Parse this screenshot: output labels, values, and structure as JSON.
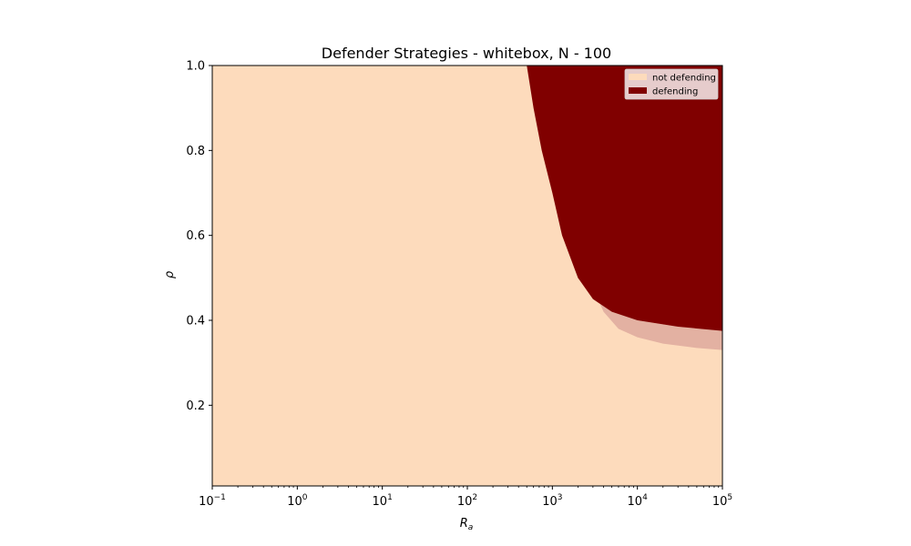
{
  "chart_data": {
    "type": "heatmap",
    "title": "Defender Strategies - whitebox, N - 100",
    "xlabel": {
      "base": "R",
      "sub": "a"
    },
    "ylabel": "ρ",
    "x_scale": "log",
    "xlim": [
      0.1,
      100000
    ],
    "ylim": [
      0.01,
      1.0
    ],
    "x_ticks": [
      {
        "base": "10",
        "exp": "−1",
        "value": 0.1
      },
      {
        "base": "10",
        "exp": "0",
        "value": 1
      },
      {
        "base": "10",
        "exp": "1",
        "value": 10
      },
      {
        "base": "10",
        "exp": "2",
        "value": 100
      },
      {
        "base": "10",
        "exp": "3",
        "value": 1000
      },
      {
        "base": "10",
        "exp": "4",
        "value": 10000
      },
      {
        "base": "10",
        "exp": "5",
        "value": 100000
      }
    ],
    "y_ticks": [
      {
        "label": "0.2",
        "value": 0.2
      },
      {
        "label": "0.4",
        "value": 0.4
      },
      {
        "label": "0.6",
        "value": 0.6
      },
      {
        "label": "0.8",
        "value": 0.8
      },
      {
        "label": "1.0",
        "value": 1.0
      }
    ],
    "classes": [
      {
        "name": "not defending",
        "color": "#fddbbc"
      },
      {
        "name": "defending",
        "color": "#800000"
      }
    ],
    "boundary": [
      {
        "x": 500,
        "y": 1.0
      },
      {
        "x": 600,
        "y": 0.9
      },
      {
        "x": 750,
        "y": 0.8
      },
      {
        "x": 1000,
        "y": 0.7
      },
      {
        "x": 1300,
        "y": 0.6
      },
      {
        "x": 2000,
        "y": 0.5
      },
      {
        "x": 3000,
        "y": 0.45
      },
      {
        "x": 5000,
        "y": 0.42
      },
      {
        "x": 10000,
        "y": 0.4
      },
      {
        "x": 30000,
        "y": 0.385
      },
      {
        "x": 100000,
        "y": 0.375
      }
    ],
    "transition_band_lower": [
      {
        "x": 2800,
        "y": 0.49
      },
      {
        "x": 4000,
        "y": 0.42
      },
      {
        "x": 6000,
        "y": 0.38
      },
      {
        "x": 10000,
        "y": 0.36
      },
      {
        "x": 20000,
        "y": 0.345
      },
      {
        "x": 50000,
        "y": 0.335
      },
      {
        "x": 100000,
        "y": 0.33
      }
    ],
    "legend_position": "upper right",
    "grid": false
  }
}
